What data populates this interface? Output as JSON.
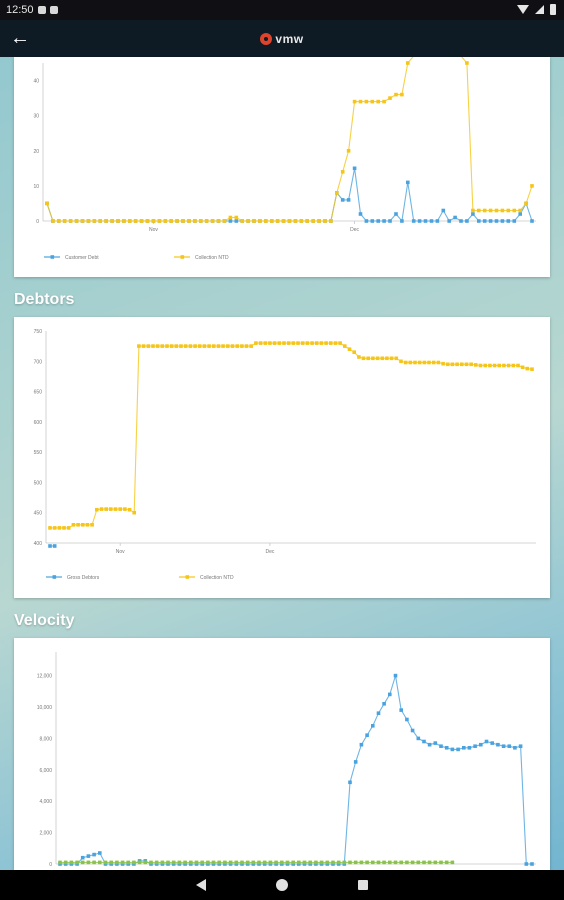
{
  "status_bar": {
    "time": "12:50"
  },
  "app_bar": {
    "logo_text": "vmw"
  },
  "colors": {
    "blue": "#4aa3df",
    "yellow": "#f5c518",
    "green": "#8bc34a",
    "axis": "#c8c8c8"
  },
  "sections": {
    "debtors_title": "Debtors",
    "velocity_title": "Velocity"
  },
  "chart_data": [
    {
      "type": "line",
      "title": "",
      "yticks": [
        "40",
        "30",
        "20",
        "10",
        "0"
      ],
      "ylim": [
        0,
        45
      ],
      "xticks": [
        {
          "index": 18,
          "label": "Nov"
        },
        {
          "index": 52,
          "label": "Dec"
        }
      ],
      "series": [
        {
          "name": "Customer Debt",
          "color": "#4aa3df",
          "values": [
            5,
            0,
            0,
            0,
            0,
            0,
            0,
            0,
            0,
            0,
            0,
            0,
            0,
            0,
            0,
            0,
            0,
            0,
            0,
            0,
            0,
            0,
            0,
            0,
            0,
            0,
            0,
            0,
            0,
            0,
            0,
            0,
            0,
            0,
            0,
            0,
            0,
            0,
            0,
            0,
            0,
            0,
            0,
            0,
            0,
            0,
            0,
            0,
            0,
            8,
            6,
            6,
            15,
            2,
            0,
            0,
            0,
            0,
            0,
            2,
            0,
            11,
            0,
            0,
            0,
            0,
            0,
            3,
            0,
            1,
            0,
            0,
            2,
            0,
            0,
            0,
            0,
            0,
            0,
            0,
            2,
            5,
            0
          ]
        },
        {
          "name": "Collection NTD",
          "color": "#f5c518",
          "values": [
            5,
            0,
            0,
            0,
            0,
            0,
            0,
            0,
            0,
            0,
            0,
            0,
            0,
            0,
            0,
            0,
            0,
            0,
            0,
            0,
            0,
            0,
            0,
            0,
            0,
            0,
            0,
            0,
            0,
            0,
            0,
            1,
            1,
            0,
            0,
            0,
            0,
            0,
            0,
            0,
            0,
            0,
            0,
            0,
            0,
            0,
            0,
            0,
            0,
            8,
            14,
            20,
            34,
            34,
            34,
            34,
            34,
            34,
            35,
            36,
            36,
            45,
            47,
            48,
            48,
            48,
            48,
            48,
            48,
            48,
            47,
            45,
            3,
            3,
            3,
            3,
            3,
            3,
            3,
            3,
            3,
            5,
            10
          ]
        }
      ]
    },
    {
      "type": "line",
      "title": "",
      "yticks": [
        "750",
        "700",
        "650",
        "600",
        "550",
        "500",
        "450",
        "400"
      ],
      "ylim": [
        400,
        750
      ],
      "xticks": [
        {
          "index": 15,
          "label": "Nov"
        },
        {
          "index": 47,
          "label": "Dec"
        }
      ],
      "series": [
        {
          "name": "Gross Debtors",
          "color": "#4aa3df",
          "values": [
            395,
            395
          ]
        },
        {
          "name": "Collection NTD",
          "color": "#f5c518",
          "values": [
            425,
            425,
            425,
            425,
            425,
            430,
            430,
            430,
            430,
            430,
            455,
            456,
            456,
            456,
            456,
            456,
            456,
            455,
            450,
            725,
            725,
            725,
            725,
            725,
            725,
            725,
            725,
            725,
            725,
            725,
            725,
            725,
            725,
            725,
            725,
            725,
            725,
            725,
            725,
            725,
            725,
            725,
            725,
            725,
            730,
            730,
            730,
            730,
            730,
            730,
            730,
            730,
            730,
            730,
            730,
            730,
            730,
            730,
            730,
            730,
            730,
            730,
            730,
            725,
            720,
            715,
            707,
            705,
            705,
            705,
            705,
            705,
            705,
            705,
            705,
            700,
            698,
            698,
            698,
            698,
            698,
            698,
            698,
            698,
            696,
            695,
            695,
            695,
            695,
            695,
            695,
            694,
            693,
            693,
            693,
            693,
            693,
            693,
            693,
            693,
            693,
            690,
            688,
            687
          ]
        }
      ]
    },
    {
      "type": "line",
      "title": "",
      "yticks": [
        "12,000",
        "10,000",
        "8,000",
        "6,000",
        "4,000",
        "2,000",
        "0"
      ],
      "ylim": [
        0,
        13500
      ],
      "series": [
        {
          "name": "",
          "color": "#4aa3df",
          "values": [
            0,
            0,
            0,
            0,
            400,
            500,
            600,
            700,
            0,
            0,
            0,
            0,
            0,
            0,
            200,
            200,
            0,
            0,
            0,
            0,
            0,
            0,
            0,
            0,
            0,
            0,
            0,
            0,
            0,
            0,
            0,
            0,
            0,
            0,
            0,
            0,
            0,
            0,
            0,
            0,
            0,
            0,
            0,
            0,
            0,
            0,
            0,
            0,
            0,
            0,
            0,
            5200,
            6500,
            7600,
            8200,
            8800,
            9600,
            10200,
            10800,
            12000,
            9800,
            9200,
            8500,
            8000,
            7800,
            7600,
            7700,
            7500,
            7400,
            7300,
            7300,
            7400,
            7400,
            7500,
            7600,
            7800,
            7700,
            7600,
            7500,
            7500,
            7400,
            7500,
            0,
            0
          ]
        },
        {
          "name": "",
          "color": "#8bc34a",
          "values": [
            100,
            100,
            100,
            100,
            100,
            100,
            100,
            100,
            100,
            100,
            100,
            100,
            100,
            100,
            100,
            100,
            100,
            100,
            100,
            100,
            100,
            100,
            100,
            100,
            100,
            100,
            100,
            100,
            100,
            100,
            100,
            100,
            100,
            100,
            100,
            100,
            100,
            100,
            100,
            100,
            100,
            100,
            100,
            100,
            100,
            100,
            100,
            100,
            100,
            100,
            100,
            100,
            100,
            100,
            100,
            100,
            100,
            100,
            100,
            100,
            100,
            100,
            100,
            100,
            100,
            100,
            100,
            100,
            100,
            100
          ]
        }
      ]
    }
  ]
}
